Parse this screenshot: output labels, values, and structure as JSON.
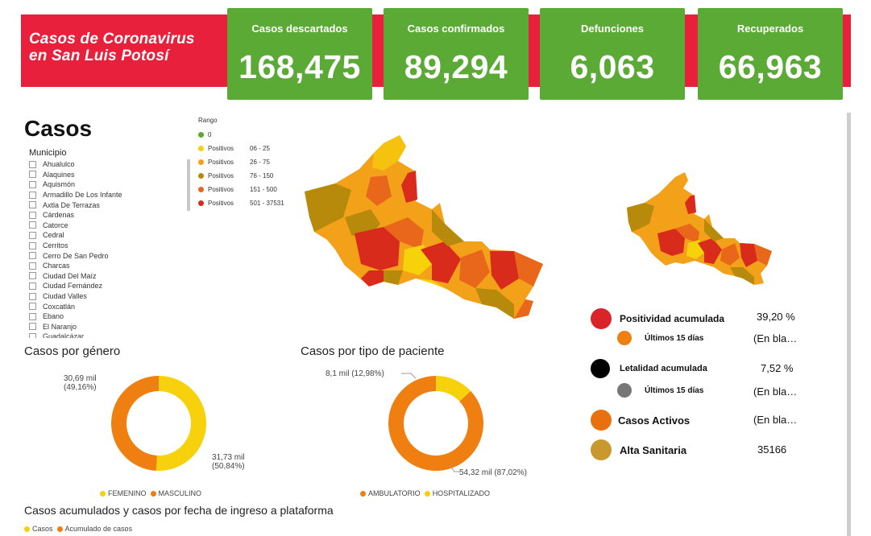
{
  "header": {
    "title_line1": "Casos de Coronavirus",
    "title_line2": "en San Luis Potosí",
    "stats": [
      {
        "label": "Casos descartados",
        "value": "168,475"
      },
      {
        "label": "Casos confirmados",
        "value": "89,294"
      },
      {
        "label": "Defunciones",
        "value": "6,063"
      },
      {
        "label": "Recuperados",
        "value": "66,963"
      }
    ]
  },
  "casos": {
    "title": "Casos",
    "municipio_label": "Municipio",
    "municipios": [
      "Ahualulco",
      "Alaquines",
      "Aquismón",
      "Armadillo De Los Infante",
      "Axtla De Terrazas",
      "Cárdenas",
      "Catorce",
      "Cedral",
      "Cerritos",
      "Cerro De San Pedro",
      "Charcas",
      "Ciudad Del Maíz",
      "Ciudad Fernández",
      "Ciudad Valles",
      "Coxcatlán",
      "Ebano",
      "El Naranjo",
      "Guadalcázar"
    ]
  },
  "legend": {
    "title": "Rango",
    "items": [
      {
        "label": "0",
        "range": "",
        "color": "#5aaa35"
      },
      {
        "label": "Positivos",
        "range": "06 - 25",
        "color": "#f5d20a"
      },
      {
        "label": "Positivos",
        "range": "26 - 75",
        "color": "#f4a11a"
      },
      {
        "label": "Positivos",
        "range": "76 - 150",
        "color": "#b88a0c"
      },
      {
        "label": "Positivos",
        "range": "151 - 500",
        "color": "#e8671a"
      },
      {
        "label": "Positivos",
        "range": "501 - 37531",
        "color": "#d92b1c"
      }
    ]
  },
  "indicators": {
    "positividad": {
      "label": "Positividad acumulada",
      "value": "39,20 %",
      "color": "#d9252a"
    },
    "positividad_15": {
      "label": "Últimos 15 días",
      "value": "(En bla…",
      "color": "#f07f12"
    },
    "letalidad": {
      "label": "Letalidad acumulada",
      "value": "7,52 %",
      "color": "#000000"
    },
    "letalidad_15": {
      "label": "Últimos 15 días",
      "value": "(En bla…",
      "color": "#777777"
    },
    "activos": {
      "label": "Casos Activos",
      "value": "(En bla…",
      "color": "#e8700f"
    },
    "alta": {
      "label": "Alta Sanitaria",
      "value": "35166",
      "color": "#c9992f"
    }
  },
  "genero": {
    "title": "Casos por género",
    "label_masculino": "30,69 mil\n(49,16%)",
    "label_femenino": "31,73 mil\n(50,84%)",
    "legend": [
      "FEMENINO",
      "MASCULINO"
    ],
    "colors": {
      "femenino": "#f7d20c",
      "masculino": "#f07f12"
    },
    "values": {
      "femenino": 50.84,
      "masculino": 49.16
    }
  },
  "paciente": {
    "title": "Casos por tipo de paciente",
    "label_hosp": "8,1 mil (12,98%)",
    "label_amb": "54,32 mil (87,02%)",
    "legend": [
      "AMBULATORIO",
      "HOSPITALIZADO"
    ],
    "colors": {
      "ambulatorio": "#f07f12",
      "hospitalizado": "#f7d20c"
    },
    "values": {
      "ambulatorio": 87.02,
      "hospitalizado": 12.98
    }
  },
  "acumulados": {
    "title": "Casos acumulados y casos por fecha de ingreso a plataforma",
    "legend": [
      "Casos",
      "Acumulado de casos"
    ],
    "colors": [
      "#f7d20c",
      "#f07f12"
    ]
  }
}
